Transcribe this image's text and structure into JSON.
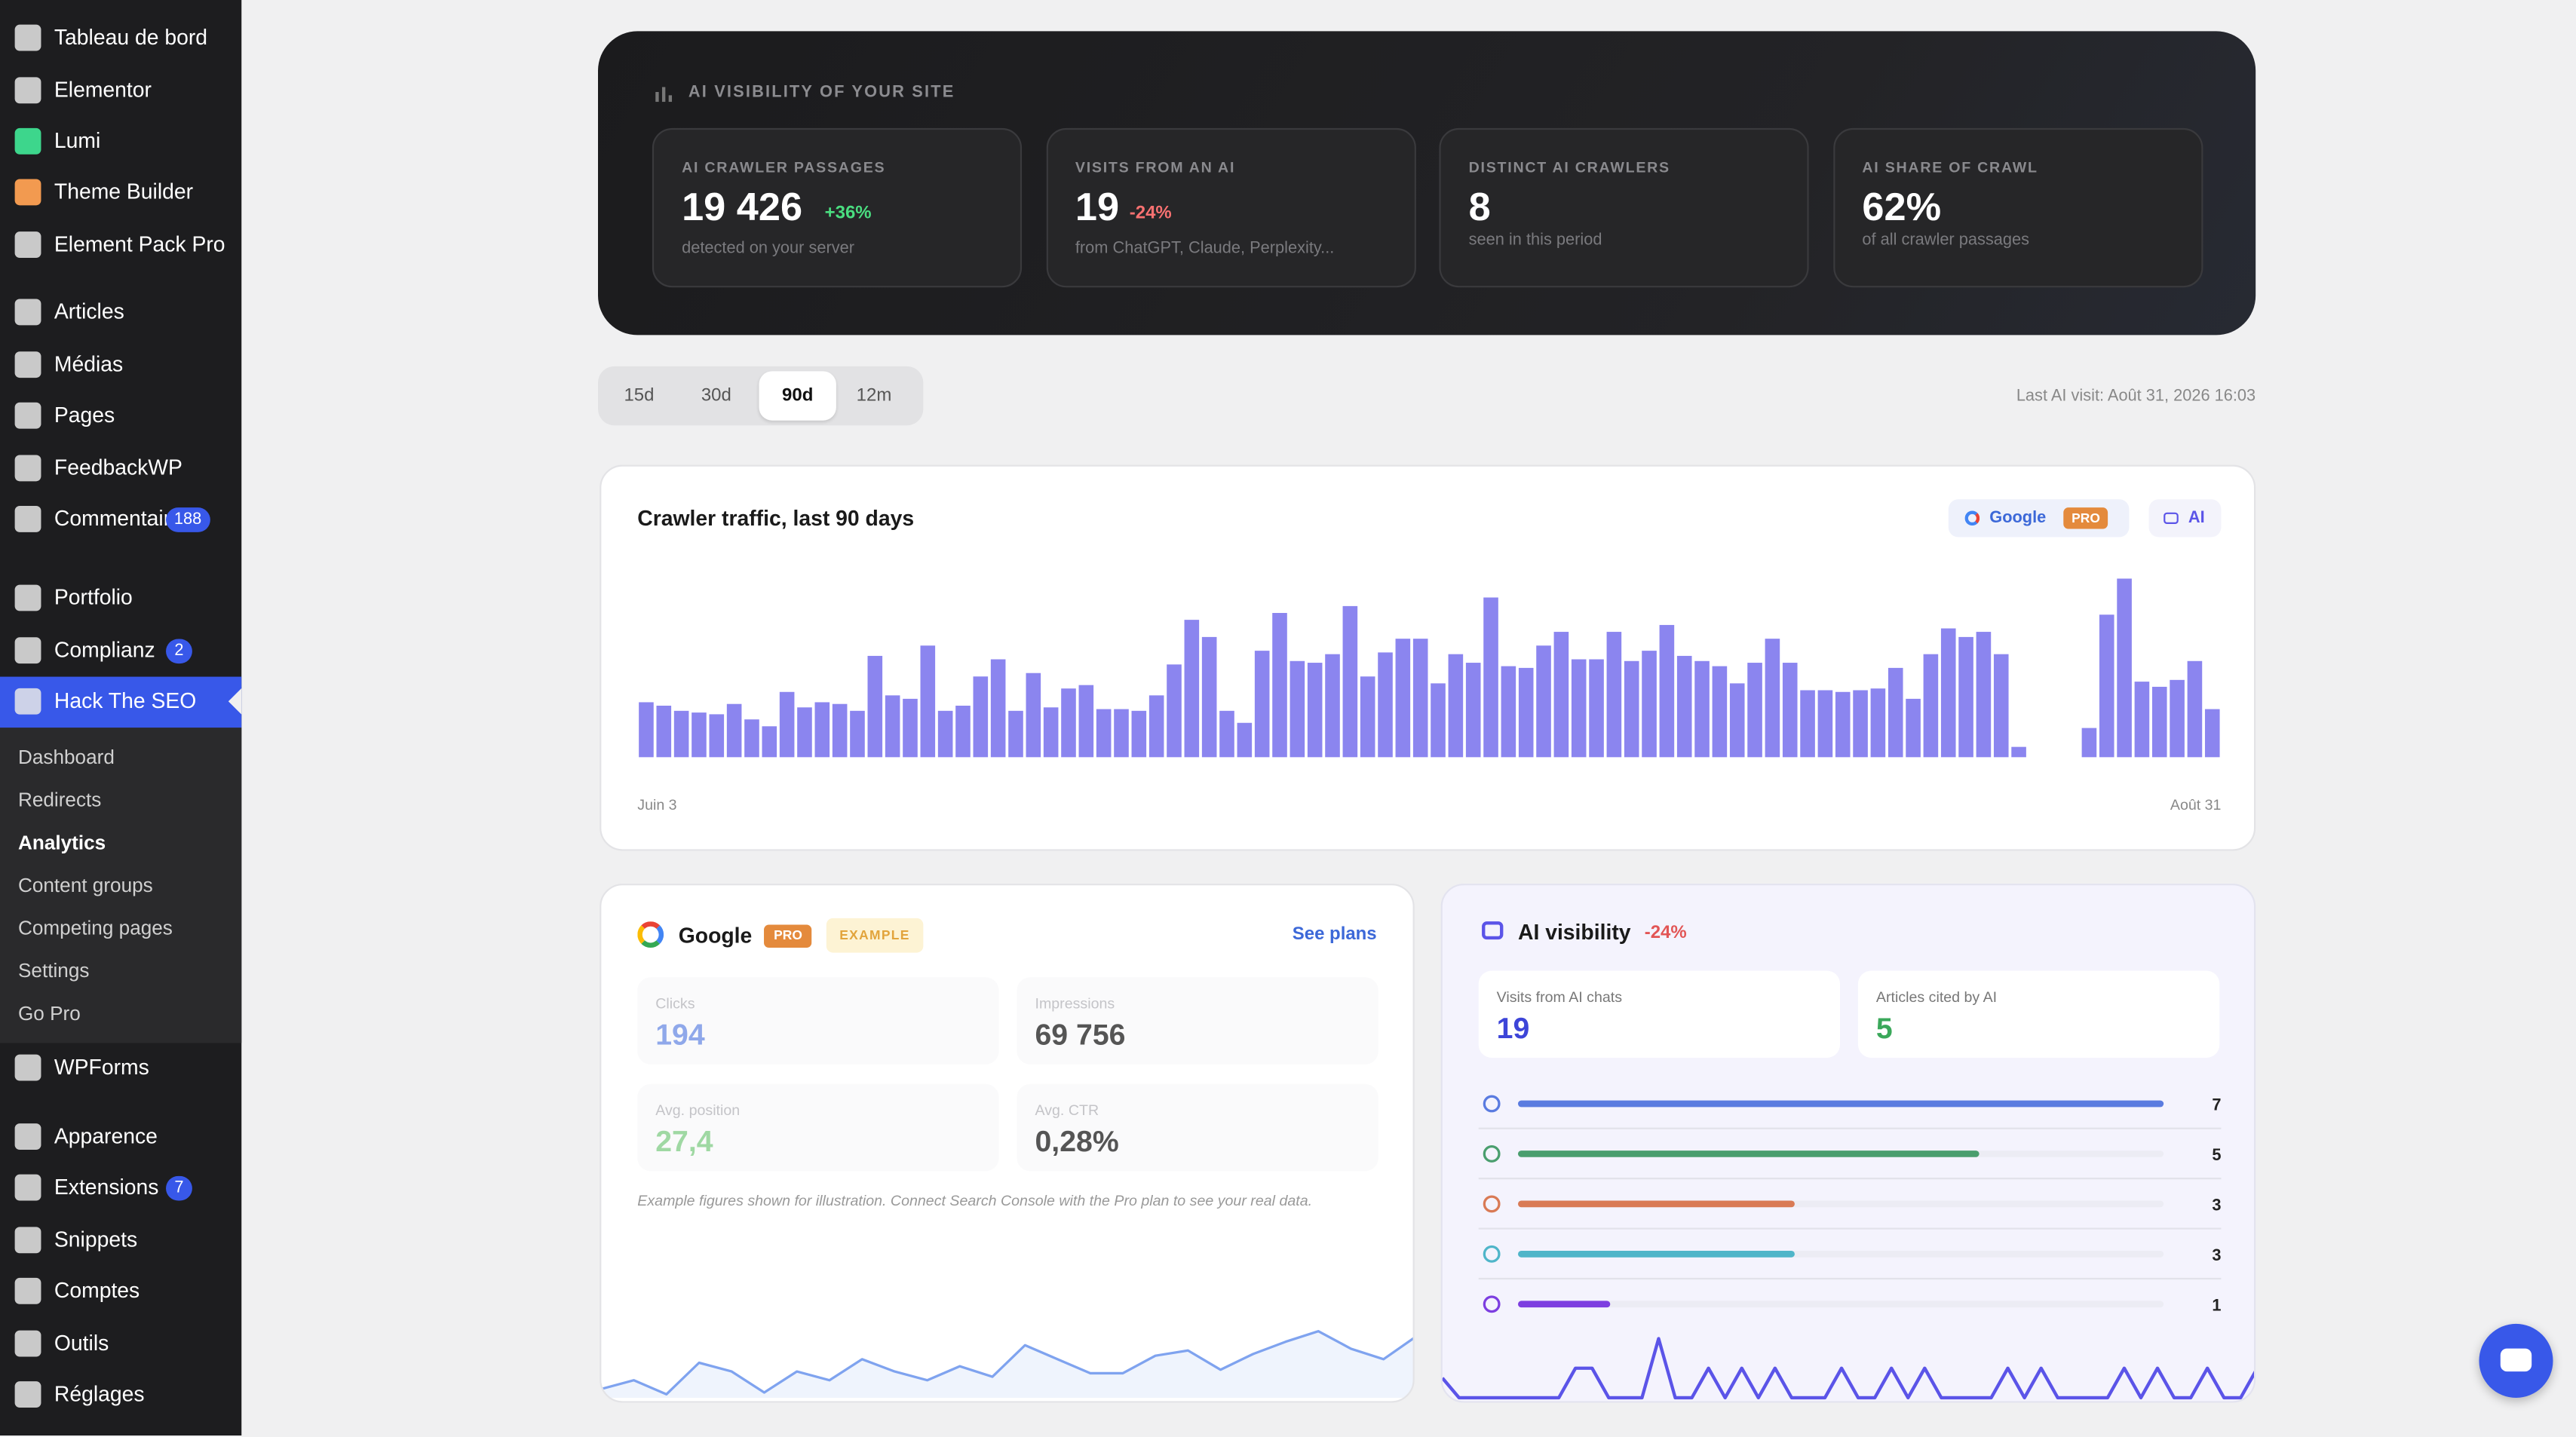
{
  "sidebar": {
    "items": [
      {
        "label": "Tableau de bord"
      },
      {
        "label": "Elementor"
      },
      {
        "label": "Lumi",
        "icon_color": "#3dd68c"
      },
      {
        "label": "Theme Builder",
        "icon_color": "#f29a50"
      },
      {
        "label": "Element Pack Pro"
      },
      {
        "label": "Articles"
      },
      {
        "label": "Médias"
      },
      {
        "label": "Pages"
      },
      {
        "label": "FeedbackWP"
      },
      {
        "label": "Commentaires",
        "badge": "188"
      },
      {
        "label": "Portfolio"
      },
      {
        "label": "Complianz",
        "badge": "2"
      },
      {
        "label": "Hack The SEO",
        "active": true
      },
      {
        "label": "WPForms"
      },
      {
        "label": "Apparence"
      },
      {
        "label": "Extensions",
        "badge": "7"
      },
      {
        "label": "Snippets"
      },
      {
        "label": "Comptes"
      },
      {
        "label": "Outils"
      },
      {
        "label": "Réglages"
      }
    ],
    "submenu": [
      {
        "label": "Dashboard"
      },
      {
        "label": "Redirects"
      },
      {
        "label": "Analytics",
        "active": true
      },
      {
        "label": "Content groups"
      },
      {
        "label": "Competing pages"
      },
      {
        "label": "Settings"
      },
      {
        "label": "Go Pro"
      }
    ]
  },
  "hero": {
    "title": "AI VISIBILITY OF YOUR SITE",
    "cards": [
      {
        "label": "AI CRAWLER PASSAGES",
        "value": "19 426",
        "delta": "+36%",
        "delta_color": "#4ade80",
        "note": "detected on your server"
      },
      {
        "label": "VISITS FROM AN AI",
        "value": "19",
        "delta": "-24%",
        "delta_color": "#f87171",
        "note": "from ChatGPT, Claude, Perplexity..."
      },
      {
        "label": "DISTINCT AI CRAWLERS",
        "value": "8",
        "note": "seen in this period"
      },
      {
        "label": "AI SHARE OF CRAWL",
        "value": "62%",
        "note": "of all crawler passages"
      }
    ]
  },
  "periods": {
    "options": [
      "15d",
      "30d",
      "90d",
      "12m"
    ],
    "selected_index": 2
  },
  "last_visit": "Last AI visit: Août 31, 2026 16:03",
  "traffic_filters": {
    "google": "Google",
    "pro": "PRO",
    "ai": "AI"
  },
  "google_card": {
    "title": "Google",
    "badges": [
      "PRO",
      "EXAMPLE"
    ],
    "link": "See plans",
    "metrics": [
      {
        "label": "Clicks",
        "value": "194",
        "color": "#8fa8ea"
      },
      {
        "label": "Impressions",
        "value": "69 756",
        "color": "#555"
      },
      {
        "label": "Avg. position",
        "value": "27,4",
        "color": "#9fd8a3"
      },
      {
        "label": "Avg. CTR",
        "value": "0,28%",
        "color": "#555"
      }
    ],
    "note": "Example figures shown for illustration. Connect Search Console with the Pro plan to see your real data."
  },
  "ai_card": {
    "title": "AI visibility",
    "delta": "-24%",
    "metrics": [
      {
        "label": "Visits from AI chats",
        "value": "19",
        "color": "#3d45d8"
      },
      {
        "label": "Articles cited by AI",
        "value": "5",
        "color": "#3aa85a"
      }
    ]
  },
  "chart_data": [
    {
      "type": "bar",
      "title": "Crawler traffic, last 90 days",
      "color": "#8b85ef",
      "ylim": [
        0,
        110
      ],
      "categories": [
        "Juin 3",
        null,
        null,
        null,
        null,
        null,
        null,
        null,
        null,
        null,
        null,
        null,
        null,
        null,
        null,
        null,
        null,
        null,
        null,
        null,
        null,
        null,
        null,
        null,
        null,
        null,
        null,
        null,
        null,
        null,
        null,
        null,
        null,
        null,
        null,
        null,
        null,
        null,
        null,
        null,
        null,
        null,
        null,
        null,
        null,
        null,
        null,
        null,
        null,
        null,
        null,
        null,
        null,
        null,
        null,
        null,
        null,
        null,
        null,
        null,
        null,
        null,
        null,
        null,
        null,
        null,
        null,
        null,
        null,
        null,
        null,
        null,
        null,
        null,
        null,
        null,
        null,
        null,
        null,
        null,
        null,
        null,
        null,
        null,
        null,
        null,
        null,
        null,
        null,
        "Août 31"
      ],
      "values": [
        32,
        30,
        27,
        26,
        25,
        31,
        22,
        18,
        38,
        29,
        32,
        31,
        27,
        59,
        36,
        34,
        65,
        27,
        30,
        47,
        57,
        27,
        49,
        29,
        40,
        42,
        28,
        28,
        27,
        36,
        54,
        80,
        70,
        27,
        20,
        62,
        84,
        56,
        55,
        60,
        88,
        47,
        61,
        69,
        69,
        43,
        60,
        55,
        93,
        53,
        52,
        65,
        73,
        57,
        57,
        73,
        56,
        62,
        77,
        59,
        56,
        53,
        43,
        55,
        69,
        55,
        39,
        39,
        38,
        39,
        40,
        52,
        34,
        60,
        75,
        70,
        73,
        60,
        6,
        0,
        0,
        0,
        17,
        83,
        104,
        44,
        41,
        45,
        56,
        28
      ]
    },
    {
      "type": "line",
      "color": "#7fa3ef",
      "ylim": [
        0,
        45
      ],
      "values": [
        5,
        10,
        2,
        20,
        15,
        3,
        15,
        10,
        22,
        15,
        10,
        18,
        12,
        30,
        22,
        14,
        14,
        24,
        27,
        16,
        25,
        32,
        38,
        28,
        22,
        35
      ]
    },
    {
      "type": "line",
      "color": "#5b54e8",
      "ylim": [
        0,
        40
      ],
      "values": [
        12,
        0,
        0,
        0,
        0,
        0,
        0,
        0,
        18,
        18,
        0,
        0,
        0,
        36,
        0,
        0,
        18,
        0,
        18,
        0,
        18,
        0,
        0,
        0,
        18,
        0,
        0,
        18,
        0,
        18,
        0,
        0,
        0,
        0,
        18,
        0,
        18,
        0,
        0,
        0,
        0,
        18,
        0,
        18,
        0,
        0,
        18,
        0,
        0,
        18
      ]
    },
    {
      "type": "hbar",
      "xlim": [
        0,
        7
      ],
      "categories": [
        null,
        null,
        null,
        null,
        null
      ],
      "values": [
        7,
        5,
        3,
        3,
        1
      ],
      "colors": [
        "#5a7be0",
        "#4a9e6e",
        "#d97a55",
        "#4fb5c9",
        "#7d3ee0"
      ]
    }
  ]
}
